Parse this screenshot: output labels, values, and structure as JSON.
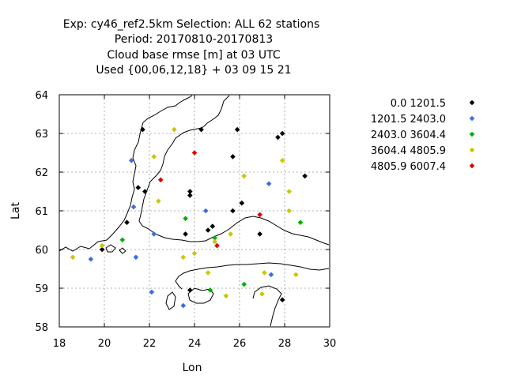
{
  "chart_data": {
    "type": "scatter",
    "title_lines": [
      "Exp: cy46_ref2.5km   Selection: ALL     62 stations",
      "Period: 20170810-20170813",
      "Cloud base rmse [m] at  03 UTC",
      "Used {00,06,12,18} + 03 09 15 21"
    ],
    "xlabel": "Lon",
    "ylabel": "Lat",
    "xlim": [
      18,
      30
    ],
    "ylim": [
      58,
      64
    ],
    "xticks": [
      "18",
      "20",
      "22",
      "24",
      "26",
      "28",
      "30"
    ],
    "yticks": [
      "58",
      "59",
      "60",
      "61",
      "62",
      "63",
      "64"
    ],
    "grid": true,
    "legend_position": "right",
    "series": [
      {
        "name": "0.0 1201.5",
        "color": "#000000",
        "points": [
          [
            21.7,
            63.1
          ],
          [
            24.3,
            63.1
          ],
          [
            25.9,
            63.1
          ],
          [
            27.9,
            63.0
          ],
          [
            27.7,
            62.9
          ],
          [
            25.7,
            62.4
          ],
          [
            28.9,
            61.9
          ],
          [
            21.5,
            61.6
          ],
          [
            21.8,
            61.5
          ],
          [
            23.8,
            61.5
          ],
          [
            23.8,
            61.4
          ],
          [
            26.1,
            61.2
          ],
          [
            25.7,
            61.0
          ],
          [
            21.0,
            60.7
          ],
          [
            23.6,
            60.4
          ],
          [
            24.8,
            60.6
          ],
          [
            24.6,
            60.5
          ],
          [
            26.9,
            60.4
          ],
          [
            19.9,
            60.0
          ],
          [
            23.8,
            58.95
          ],
          [
            27.9,
            58.7
          ]
        ]
      },
      {
        "name": "1201.5 2403.0",
        "color": "#3c6ee0",
        "points": [
          [
            21.2,
            62.3
          ],
          [
            27.3,
            61.7
          ],
          [
            24.5,
            61.0
          ],
          [
            21.3,
            61.1
          ],
          [
            22.2,
            60.4
          ],
          [
            21.4,
            59.8
          ],
          [
            19.4,
            59.75
          ],
          [
            27.4,
            59.35
          ],
          [
            22.1,
            58.9
          ],
          [
            23.5,
            58.55
          ]
        ]
      },
      {
        "name": "2403.0 3604.4",
        "color": "#00b000",
        "points": [
          [
            23.6,
            60.8
          ],
          [
            20.8,
            60.25
          ],
          [
            24.9,
            60.3
          ],
          [
            28.7,
            60.7
          ],
          [
            26.2,
            59.1
          ],
          [
            24.7,
            58.95
          ]
        ]
      },
      {
        "name": "3604.4 4805.9",
        "color": "#c8c800",
        "points": [
          [
            23.1,
            63.1
          ],
          [
            22.2,
            62.4
          ],
          [
            27.9,
            62.3
          ],
          [
            26.2,
            61.9
          ],
          [
            28.2,
            61.5
          ],
          [
            22.4,
            61.25
          ],
          [
            28.2,
            61.0
          ],
          [
            25.6,
            60.4
          ],
          [
            24.9,
            60.2
          ],
          [
            18.6,
            59.8
          ],
          [
            19.9,
            60.1
          ],
          [
            23.5,
            59.8
          ],
          [
            24.0,
            59.9
          ],
          [
            24.6,
            59.4
          ],
          [
            27.1,
            59.4
          ],
          [
            28.5,
            59.35
          ],
          [
            25.4,
            58.8
          ],
          [
            27.0,
            58.85
          ]
        ]
      },
      {
        "name": "4805.9 6007.4",
        "color": "#e00000",
        "points": [
          [
            24.0,
            62.5
          ],
          [
            22.5,
            61.8
          ],
          [
            26.9,
            60.9
          ],
          [
            25.0,
            60.1
          ]
        ]
      }
    ]
  }
}
